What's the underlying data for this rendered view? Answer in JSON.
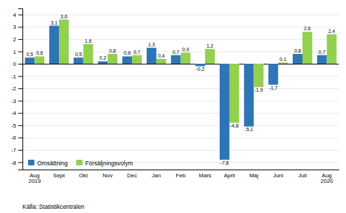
{
  "chart_data": {
    "type": "bar",
    "categories": [
      "Aug\n2019",
      "Sept",
      "Okt",
      "Nov",
      "Dec",
      "Jan",
      "Feb",
      "Mars",
      "April",
      "Maj",
      "Juni",
      "Juli",
      "Aug\n2020"
    ],
    "series": [
      {
        "name": "Omsättning",
        "color": "#2E75B6",
        "values": [
          0.5,
          3.1,
          0.5,
          0.2,
          0.6,
          1.3,
          0.7,
          -0.2,
          -7.8,
          -5.1,
          -1.7,
          0.8,
          0.7
        ],
        "value_labels": [
          "0,5",
          "3,1",
          "0,5",
          "0,2",
          "0,6",
          "1,3",
          "0,7",
          "-0,2",
          "-7,8",
          "-5,1",
          "-1,7",
          "0,8",
          "0,7"
        ]
      },
      {
        "name": "Försäljningsvolym",
        "color": "#92D050",
        "values": [
          0.6,
          3.6,
          1.6,
          0.8,
          0.7,
          0.4,
          0.9,
          1.2,
          -4.8,
          -1.9,
          0.1,
          2.6,
          2.4
        ],
        "value_labels": [
          "0,6",
          "3,6",
          "1,6",
          "0,8",
          "0,7",
          "0,4",
          "0,9",
          "1,2",
          "-4,8",
          "-1,9",
          "0,1",
          "2,6",
          "2,4"
        ]
      }
    ],
    "ylim": [
      -8.6,
      4.5
    ],
    "yticks": [
      -8,
      -7,
      -6,
      -5,
      -4,
      -3,
      -2,
      -1,
      0,
      1,
      2,
      3,
      4
    ],
    "grid": true,
    "legend": "lower left",
    "data_labels": true,
    "annotations": [
      "Källa: Statistikcentralen"
    ]
  }
}
